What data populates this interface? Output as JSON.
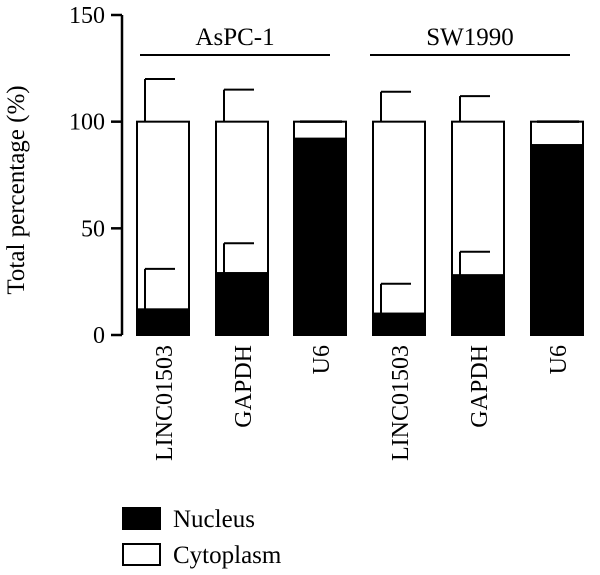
{
  "chart_data": {
    "type": "bar",
    "stacked": true,
    "ylabel": "Total percentage (%)",
    "ylim": [
      0,
      150
    ],
    "yticks": [
      0,
      50,
      100,
      150
    ],
    "categories": [
      "LINC01503",
      "GAPDH",
      "U6",
      "LINC01503",
      "GAPDH",
      "U6"
    ],
    "groups": [
      {
        "label": "AsPC-1",
        "categories": [
          0,
          1,
          2
        ]
      },
      {
        "label": "SW1990",
        "categories": [
          3,
          4,
          5
        ]
      }
    ],
    "series": [
      {
        "name": "Nucleus",
        "color": "#000000",
        "values": [
          12,
          29,
          92,
          10,
          28,
          89
        ],
        "error": [
          19,
          14,
          0.5,
          14,
          11,
          0.5
        ]
      },
      {
        "name": "Cytoplasm",
        "color": "#ffffff",
        "values": [
          88,
          71,
          8,
          90,
          72,
          11
        ],
        "error": [
          20,
          15,
          0.5,
          14,
          12,
          0.5
        ]
      }
    ],
    "legend": {
      "position": "bottom-left"
    }
  }
}
